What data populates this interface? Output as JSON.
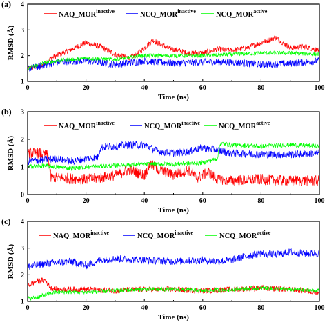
{
  "colors": {
    "red": "#ff0000",
    "blue": "#0000ff",
    "green": "#00ff00",
    "axis": "#000000"
  },
  "chart_data": [
    {
      "type": "line",
      "panel_label": "(a)",
      "xlabel": "Time (ns)",
      "ylabel": "RMSD (Å)",
      "xlim": [
        0,
        100
      ],
      "ylim": [
        1,
        4
      ],
      "xticks": [
        0,
        20,
        40,
        60,
        80,
        100
      ],
      "yticks": [
        1,
        2,
        3,
        4
      ],
      "legend_position": "top",
      "series": [
        {
          "base": "NAQ_MOR",
          "sup": "inactive",
          "color": "#ff0000",
          "x": [
            0,
            5,
            8,
            12,
            16,
            20,
            25,
            30,
            35,
            38,
            40,
            43,
            48,
            55,
            60,
            65,
            70,
            75,
            80,
            85,
            90,
            95,
            100
          ],
          "values": [
            1.5,
            1.6,
            1.9,
            2.1,
            2.3,
            2.5,
            2.35,
            2.05,
            1.9,
            2.1,
            2.3,
            2.6,
            2.3,
            2.1,
            2.1,
            2.25,
            2.2,
            2.3,
            2.5,
            2.7,
            2.3,
            2.35,
            2.2
          ]
        },
        {
          "base": "NCQ_MOR",
          "sup": "inactive",
          "color": "#0000ff",
          "x": [
            0,
            5,
            10,
            20,
            30,
            40,
            50,
            60,
            70,
            80,
            90,
            100
          ],
          "values": [
            1.5,
            1.6,
            1.75,
            1.8,
            1.65,
            1.8,
            1.7,
            1.75,
            1.75,
            1.65,
            1.7,
            1.8
          ]
        },
        {
          "base": "NCQ_MOR",
          "sup": "active",
          "color": "#00ff00",
          "x": [
            0,
            5,
            10,
            20,
            30,
            40,
            50,
            60,
            70,
            80,
            90,
            100
          ],
          "values": [
            1.5,
            1.7,
            1.8,
            1.9,
            1.85,
            2.0,
            2.0,
            2.0,
            2.05,
            2.1,
            2.1,
            2.05
          ]
        }
      ]
    },
    {
      "type": "line",
      "panel_label": "(b)",
      "xlabel": "Time (ns)",
      "ylabel": "RMSD (Å)",
      "xlim": [
        0,
        100
      ],
      "ylim": [
        0,
        3
      ],
      "xticks": [
        0,
        20,
        40,
        60,
        80,
        100
      ],
      "yticks": [
        0,
        1,
        2,
        3
      ],
      "legend_position": "top",
      "series": [
        {
          "base": "NAQ_MOR",
          "sup": "inactive",
          "color": "#ff0000",
          "x": [
            0,
            4,
            7,
            8,
            12,
            20,
            25,
            30,
            35,
            40,
            42,
            45,
            50,
            55,
            58,
            62,
            65,
            70,
            80,
            90,
            100
          ],
          "values": [
            1.5,
            1.5,
            1.4,
            0.6,
            0.6,
            0.55,
            0.6,
            0.7,
            0.9,
            0.7,
            1.1,
            0.9,
            0.7,
            0.9,
            0.6,
            0.8,
            0.55,
            0.5,
            0.55,
            0.5,
            0.5
          ]
        },
        {
          "base": "NCQ_MOR",
          "sup": "inactive",
          "color": "#0000ff",
          "x": [
            0,
            5,
            10,
            15,
            20,
            24,
            25,
            30,
            35,
            40,
            45,
            50,
            55,
            60,
            65,
            70,
            80,
            90,
            100
          ],
          "values": [
            1.2,
            1.25,
            1.3,
            1.2,
            1.3,
            1.35,
            1.7,
            1.75,
            1.8,
            1.8,
            1.55,
            1.5,
            1.55,
            1.7,
            1.6,
            1.5,
            1.45,
            1.45,
            1.5
          ]
        },
        {
          "base": "NCQ_MOR",
          "sup": "active",
          "color": "#00ff00",
          "x": [
            0,
            5,
            10,
            15,
            20,
            30,
            40,
            50,
            60,
            65,
            66,
            70,
            80,
            90,
            100
          ],
          "values": [
            1.0,
            1.05,
            1.0,
            0.95,
            1.0,
            1.05,
            1.1,
            1.1,
            1.15,
            1.3,
            1.85,
            1.8,
            1.75,
            1.8,
            1.75
          ]
        }
      ]
    },
    {
      "type": "line",
      "panel_label": "(c)",
      "xlabel": "Time (ns)",
      "ylabel": "RMSD (Å)",
      "xlim": [
        0,
        100
      ],
      "ylim": [
        1,
        4
      ],
      "xticks": [
        0,
        20,
        40,
        60,
        80,
        100
      ],
      "yticks": [
        1,
        2,
        3,
        4
      ],
      "legend_position": "top",
      "series": [
        {
          "base": "NAQ_MOR",
          "sup": "inactive",
          "color": "#ff0000",
          "x": [
            0,
            3,
            6,
            8,
            10,
            20,
            30,
            40,
            50,
            60,
            70,
            80,
            90,
            100
          ],
          "values": [
            1.6,
            1.75,
            1.8,
            1.5,
            1.45,
            1.45,
            1.4,
            1.45,
            1.45,
            1.4,
            1.45,
            1.5,
            1.45,
            1.35
          ]
        },
        {
          "base": "NCQ_MOR",
          "sup": "inactive",
          "color": "#0000ff",
          "x": [
            0,
            5,
            10,
            15,
            20,
            25,
            30,
            40,
            50,
            60,
            65,
            70,
            75,
            80,
            85,
            90,
            95,
            100
          ],
          "values": [
            2.3,
            2.4,
            2.45,
            2.5,
            2.35,
            2.55,
            2.6,
            2.55,
            2.5,
            2.55,
            2.5,
            2.55,
            2.7,
            2.8,
            2.75,
            2.85,
            2.8,
            2.8
          ]
        },
        {
          "base": "NCQ_MOR",
          "sup": "active",
          "color": "#00ff00",
          "x": [
            0,
            3,
            6,
            10,
            20,
            30,
            40,
            50,
            60,
            70,
            80,
            90,
            100
          ],
          "values": [
            1.1,
            1.15,
            1.25,
            1.35,
            1.35,
            1.4,
            1.45,
            1.45,
            1.4,
            1.45,
            1.5,
            1.45,
            1.4
          ]
        }
      ]
    }
  ]
}
